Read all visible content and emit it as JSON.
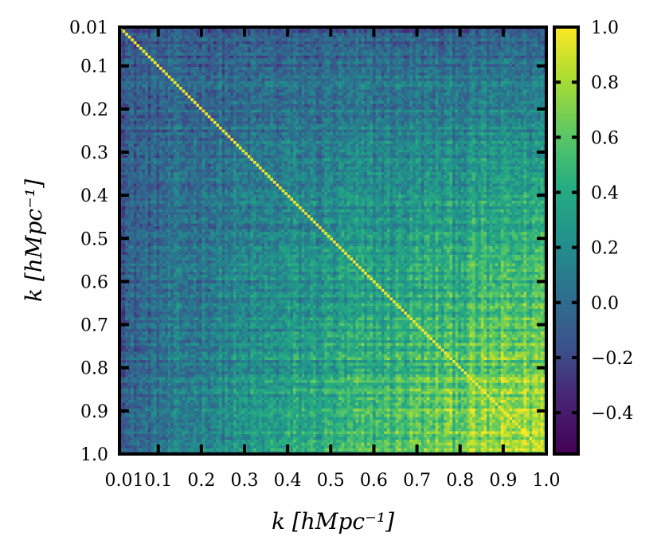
{
  "chart_data": {
    "type": "heatmap",
    "title": "",
    "xlabel": "k [hMpc⁻¹]",
    "ylabel": "k [hMpc⁻¹]",
    "x_ticks": [
      "0.01",
      "0.1",
      "0.2",
      "0.3",
      "0.4",
      "0.5",
      "0.6",
      "0.7",
      "0.8",
      "0.9",
      "1.0"
    ],
    "y_ticks": [
      "0.01",
      "0.1",
      "0.2",
      "0.3",
      "0.4",
      "0.5",
      "0.6",
      "0.7",
      "0.8",
      "0.9",
      "1.0"
    ],
    "x_range": [
      0.01,
      1.0
    ],
    "y_range": [
      0.01,
      1.0
    ],
    "y_inverted": true,
    "grid": false,
    "colormap": "viridis",
    "colorbar": {
      "range": [
        -0.55,
        1.0
      ],
      "ticks": [
        "1.0",
        "0.8",
        "0.6",
        "0.4",
        "0.2",
        "0.0",
        "−0.2",
        "−0.4"
      ],
      "tick_values": [
        1.0,
        0.8,
        0.6,
        0.4,
        0.2,
        0.0,
        -0.2,
        -0.4
      ],
      "placement": "right"
    },
    "matrix_description": {
      "bins": 150,
      "diagonal_value": 1.0,
      "corner_low_k_offdiag_mean": -0.1,
      "corner_high_k_offdiag_mean": 0.85,
      "symmetric": true
    }
  }
}
